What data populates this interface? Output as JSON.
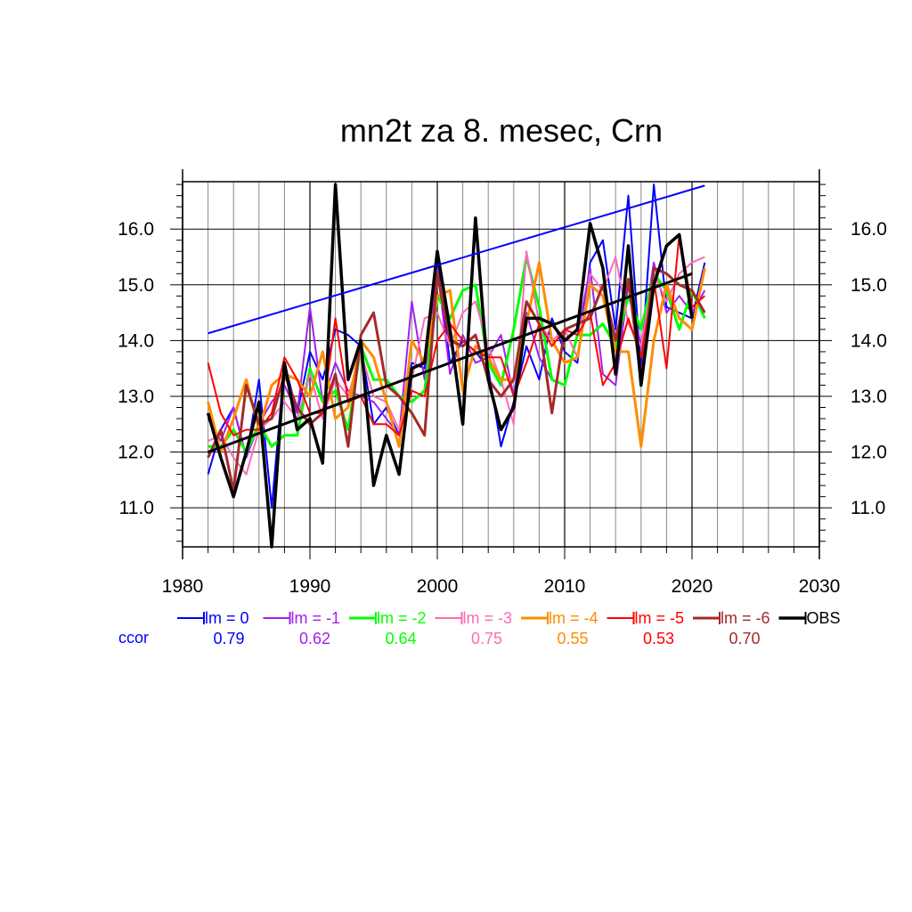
{
  "chart_data": {
    "type": "line",
    "title": "mn2t za 8. mesec, Crn",
    "xlabel": "",
    "ylabel": "",
    "xlim": [
      1980,
      2030
    ],
    "ylim": [
      10.3,
      16.85
    ],
    "x_ticks": [
      1980,
      1990,
      2000,
      2010,
      2020,
      2030
    ],
    "x_tick_labels": [
      "1980",
      "1990",
      "2000",
      "2010",
      "2020",
      "2030"
    ],
    "y_ticks": [
      11,
      12,
      13,
      14,
      15,
      16
    ],
    "y_tick_labels": [
      "11.0",
      "12.0",
      "13.0",
      "14.0",
      "15.0",
      "16.0"
    ],
    "grid": true,
    "legend_position": "bottom",
    "ccor_label": "ccor",
    "series": [
      {
        "name": "lm = 0",
        "color": "#0000ff",
        "width": 2,
        "ccor": "0.79",
        "x": [
          1982,
          1983,
          1984,
          1985,
          1986,
          1987,
          1988,
          1989,
          1990,
          1991,
          1992,
          1993,
          1994,
          1995,
          1996,
          1997,
          1998,
          1999,
          2000,
          2001,
          2002,
          2003,
          2004,
          2005,
          2006,
          2007,
          2008,
          2009,
          2010,
          2011,
          2012,
          2013,
          2014,
          2015,
          2016,
          2017,
          2018,
          2019,
          2020,
          2021
        ],
        "values": [
          11.6,
          12.4,
          12.8,
          11.9,
          13.3,
          11.0,
          13.6,
          12.7,
          13.8,
          13.3,
          14.2,
          14.1,
          13.9,
          12.5,
          12.8,
          12.3,
          13.6,
          13.5,
          15.4,
          13.6,
          14.0,
          13.8,
          13.5,
          12.1,
          12.9,
          13.9,
          13.3,
          14.4,
          13.8,
          13.6,
          15.4,
          15.8,
          14.2,
          16.6,
          13.5,
          16.8,
          14.6,
          14.5,
          14.4,
          15.4
        ]
      },
      {
        "name": "lm = -1",
        "color": "#a020f0",
        "width": 2,
        "ccor": "0.62",
        "x": [
          1982,
          1983,
          1984,
          1985,
          1986,
          1987,
          1988,
          1989,
          1990,
          1991,
          1992,
          1993,
          1994,
          1995,
          1996,
          1997,
          1998,
          1999,
          2000,
          2001,
          2002,
          2003,
          2004,
          2005,
          2006,
          2007,
          2008,
          2009,
          2010,
          2011,
          2012,
          2013,
          2014,
          2015,
          2016,
          2017,
          2018,
          2019,
          2020,
          2021
        ],
        "values": [
          12.6,
          12.2,
          12.8,
          11.9,
          12.5,
          12.9,
          13.2,
          12.7,
          14.6,
          12.9,
          13.6,
          13.1,
          13.0,
          12.9,
          12.6,
          12.3,
          14.7,
          13.3,
          15.3,
          13.4,
          14.1,
          13.6,
          13.7,
          14.1,
          13.0,
          14.5,
          13.7,
          13.3,
          13.2,
          14.1,
          15.3,
          13.4,
          13.2,
          15.0,
          13.9,
          15.4,
          14.5,
          14.8,
          14.5,
          14.9
        ]
      },
      {
        "name": "lm = -2",
        "color": "#00ff00",
        "width": 3,
        "ccor": "0.64",
        "x": [
          1982,
          1983,
          1984,
          1985,
          1986,
          1987,
          1988,
          1989,
          1990,
          1991,
          1992,
          1993,
          1994,
          1995,
          1996,
          1997,
          1998,
          1999,
          2000,
          2001,
          2002,
          2003,
          2004,
          2005,
          2006,
          2007,
          2008,
          2009,
          2010,
          2011,
          2012,
          2013,
          2014,
          2015,
          2016,
          2017,
          2018,
          2019,
          2020,
          2021
        ],
        "values": [
          12.1,
          12.1,
          12.4,
          12.0,
          12.5,
          12.1,
          12.3,
          12.3,
          13.5,
          12.9,
          13.1,
          12.4,
          13.9,
          13.3,
          13.3,
          13.0,
          12.9,
          13.1,
          14.8,
          14.4,
          14.9,
          15.0,
          13.6,
          13.2,
          14.2,
          15.5,
          14.6,
          13.3,
          13.2,
          14.1,
          14.1,
          14.3,
          13.9,
          14.8,
          14.2,
          15.2,
          14.9,
          14.2,
          14.9,
          14.4
        ]
      },
      {
        "name": "lm = -3",
        "color": "#ff69b4",
        "width": 2,
        "ccor": "0.75",
        "x": [
          1982,
          1983,
          1984,
          1985,
          1986,
          1987,
          1988,
          1989,
          1990,
          1991,
          1992,
          1993,
          1994,
          1995,
          1996,
          1997,
          1998,
          1999,
          2000,
          2001,
          2002,
          2003,
          2004,
          2005,
          2006,
          2007,
          2008,
          2009,
          2010,
          2011,
          2012,
          2013,
          2014,
          2015,
          2016,
          2017,
          2018,
          2019,
          2020,
          2021
        ],
        "values": [
          12.2,
          12.3,
          11.9,
          11.6,
          12.4,
          12.6,
          12.9,
          12.6,
          13.4,
          12.6,
          13.3,
          13.0,
          13.8,
          13.0,
          12.9,
          12.4,
          13.3,
          14.4,
          14.5,
          13.9,
          14.5,
          14.7,
          13.9,
          13.3,
          12.5,
          15.6,
          14.3,
          14.0,
          14.2,
          13.7,
          15.2,
          14.9,
          15.5,
          14.3,
          13.9,
          15.2,
          14.7,
          15.2,
          15.4,
          15.5
        ]
      },
      {
        "name": "lm = -4",
        "color": "#ff8c00",
        "width": 3,
        "ccor": "0.55",
        "x": [
          1982,
          1983,
          1984,
          1985,
          1986,
          1987,
          1988,
          1989,
          1990,
          1991,
          1992,
          1993,
          1994,
          1995,
          1996,
          1997,
          1998,
          1999,
          2000,
          2001,
          2002,
          2003,
          2004,
          2005,
          2006,
          2007,
          2008,
          2009,
          2010,
          2011,
          2012,
          2013,
          2014,
          2015,
          2016,
          2017,
          2018,
          2019,
          2020,
          2021
        ],
        "values": [
          12.9,
          12.0,
          12.6,
          13.3,
          12.4,
          13.2,
          13.4,
          13.3,
          13.0,
          13.8,
          12.6,
          12.8,
          14.0,
          13.7,
          12.9,
          12.1,
          14.0,
          13.6,
          14.8,
          14.9,
          13.1,
          13.9,
          13.7,
          13.3,
          13.3,
          14.3,
          15.4,
          14.0,
          13.6,
          13.7,
          15.0,
          14.8,
          13.8,
          13.8,
          12.1,
          14.0,
          15.0,
          14.4,
          14.2,
          15.3
        ]
      },
      {
        "name": "lm = -5",
        "color": "#ff0000",
        "width": 2,
        "ccor": "0.53",
        "x": [
          1982,
          1983,
          1984,
          1985,
          1986,
          1987,
          1988,
          1989,
          1990,
          1991,
          1992,
          1993,
          1994,
          1995,
          1996,
          1997,
          1998,
          1999,
          2000,
          2001,
          2002,
          2003,
          2004,
          2005,
          2006,
          2007,
          2008,
          2009,
          2010,
          2011,
          2012,
          2013,
          2014,
          2015,
          2016,
          2017,
          2018,
          2019,
          2020,
          2021
        ],
        "values": [
          13.6,
          12.7,
          12.3,
          12.4,
          12.4,
          12.7,
          13.7,
          13.3,
          12.7,
          12.7,
          14.4,
          12.9,
          13.0,
          12.5,
          12.5,
          12.3,
          13.1,
          13.0,
          14.0,
          14.3,
          14.0,
          13.8,
          13.7,
          13.7,
          13.0,
          13.6,
          14.3,
          13.9,
          14.2,
          14.1,
          14.5,
          13.2,
          13.6,
          14.4,
          13.7,
          15.1,
          13.5,
          15.9,
          14.6,
          14.8
        ]
      },
      {
        "name": "lm = -6",
        "color": "#a52a2a",
        "width": 3,
        "ccor": "0.70",
        "x": [
          1982,
          1983,
          1984,
          1985,
          1986,
          1987,
          1988,
          1989,
          1990,
          1991,
          1992,
          1993,
          1994,
          1995,
          1996,
          1997,
          1998,
          1999,
          2000,
          2001,
          2002,
          2003,
          2004,
          2005,
          2006,
          2007,
          2008,
          2009,
          2010,
          2011,
          2012,
          2013,
          2014,
          2015,
          2016,
          2017,
          2018,
          2019,
          2020,
          2021
        ],
        "values": [
          11.9,
          12.4,
          11.3,
          13.2,
          12.5,
          12.6,
          13.4,
          12.8,
          12.5,
          12.7,
          13.4,
          12.1,
          14.1,
          14.5,
          13.2,
          13.0,
          12.7,
          12.3,
          15.2,
          14.0,
          13.9,
          14.1,
          13.3,
          13.0,
          13.3,
          14.7,
          14.3,
          12.7,
          14.2,
          14.3,
          14.4,
          15.0,
          14.0,
          15.1,
          13.3,
          15.3,
          15.2,
          15.0,
          14.9,
          14.5
        ]
      },
      {
        "name": "OBS",
        "color": "#000000",
        "width": 3.5,
        "ccor": "",
        "x": [
          1982,
          1983,
          1984,
          1985,
          1986,
          1987,
          1988,
          1989,
          1990,
          1991,
          1992,
          1993,
          1994,
          1995,
          1996,
          1997,
          1998,
          1999,
          2000,
          2001,
          2002,
          2003,
          2004,
          2005,
          2006,
          2007,
          2008,
          2009,
          2010,
          2011,
          2012,
          2013,
          2014,
          2015,
          2016,
          2017,
          2018,
          2019,
          2020,
          2021
        ],
        "values": [
          12.7,
          11.9,
          11.2,
          12.0,
          12.9,
          10.3,
          13.6,
          12.4,
          12.6,
          11.8,
          16.8,
          13.3,
          14.0,
          11.4,
          12.3,
          11.6,
          13.5,
          13.6,
          15.6,
          14.2,
          12.5,
          16.2,
          13.3,
          12.4,
          12.8,
          14.4,
          14.4,
          14.3,
          14.0,
          14.2,
          16.1,
          15.3,
          13.4,
          15.7,
          13.2,
          15.0,
          15.7,
          15.9,
          14.4,
          null
        ]
      }
    ],
    "trend_lines": [
      {
        "color": "#0000ff",
        "width": 2,
        "x": [
          1982,
          2021
        ],
        "values": [
          14.13,
          16.78
        ]
      },
      {
        "color": "#000000",
        "width": 3,
        "x": [
          1982,
          2020
        ],
        "values": [
          12.0,
          15.2
        ]
      }
    ]
  }
}
